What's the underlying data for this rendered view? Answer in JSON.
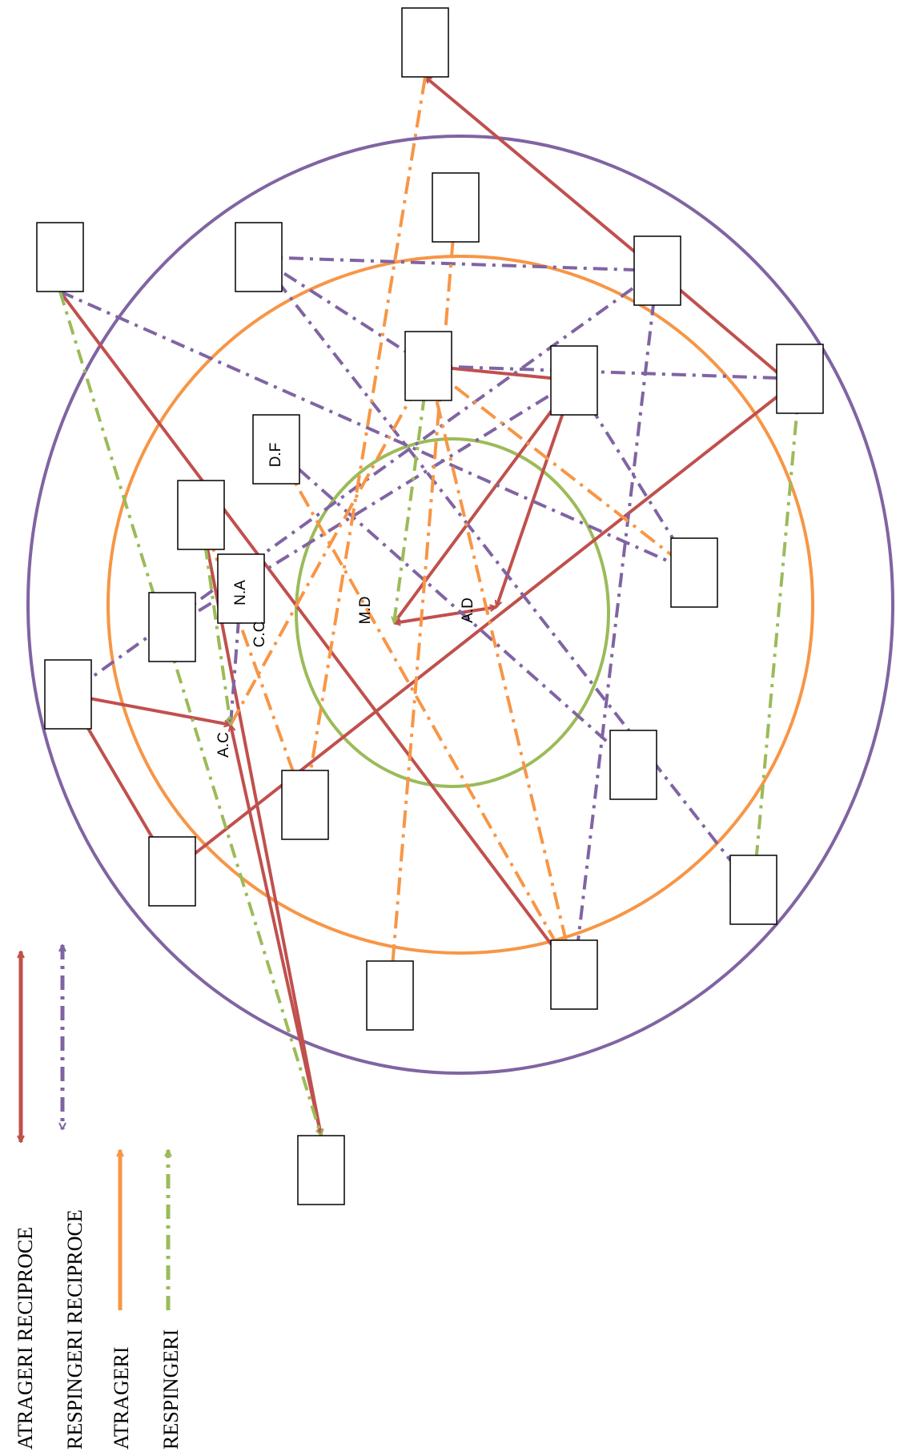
{
  "colors": {
    "reciprocal_attraction": "#c0504d",
    "reciprocal_rejection": "#8064a2",
    "attraction": "#f79646",
    "rejection": "#9bbb59",
    "outer_ring": "#8064a2",
    "middle_ring": "#f79646",
    "inner_ring": "#9bbb59"
  },
  "legend": {
    "reciprocal_attraction": "ATRAGERI RECIPROCE",
    "reciprocal_rejection": "RESPINGERI RECIPROCE",
    "attraction": "ATRAGERI",
    "rejection": "RESPINGERI"
  },
  "node_labels": {
    "df": "D.F",
    "na": "N.A",
    "cc": "C.C",
    "ac": "A.C",
    "md": "M.D",
    "ad": "A.D"
  },
  "diagram": {
    "nodes": [
      "t1",
      "t2",
      "t3",
      "t4",
      "t5",
      "t6",
      "t7",
      "t8",
      "t9",
      "t10",
      "t11",
      "t12",
      "t13",
      "t14",
      "t15",
      "t16",
      "t17",
      "t18",
      "t19",
      "t20",
      "t21",
      "df",
      "na",
      "ac",
      "md",
      "ad"
    ],
    "edges": [
      {
        "from": "md",
        "to": "ad",
        "kind": "reciprocal_attraction"
      },
      {
        "from": "md",
        "to": "t6",
        "kind": "reciprocal_attraction"
      },
      {
        "from": "ad",
        "to": "t6",
        "kind": "reciprocal_attraction"
      },
      {
        "from": "ac",
        "to": "t11",
        "kind": "reciprocal_attraction"
      },
      {
        "from": "ac",
        "to": "t19",
        "kind": "reciprocal_attraction"
      },
      {
        "from": "t11",
        "to": "t15",
        "kind": "reciprocal_attraction"
      },
      {
        "from": "t9",
        "to": "t19",
        "kind": "reciprocal_attraction"
      },
      {
        "from": "t1",
        "to": "t7",
        "kind": "reciprocal_attraction"
      },
      {
        "from": "t6",
        "to": "t5",
        "kind": "reciprocal_attraction"
      },
      {
        "from": "t8",
        "to": "t15",
        "kind": "reciprocal_attraction"
      },
      {
        "from": "t3",
        "to": "t18",
        "kind": "reciprocal_attraction"
      },
      {
        "from": "t7",
        "to": "t21",
        "kind": "reciprocal_attraction"
      },
      {
        "from": "t4",
        "to": "t7",
        "kind": "reciprocal_rejection"
      },
      {
        "from": "t4",
        "to": "t16",
        "kind": "reciprocal_rejection"
      },
      {
        "from": "t4",
        "to": "t5",
        "kind": "reciprocal_rejection"
      },
      {
        "from": "t5",
        "to": "t8",
        "kind": "reciprocal_rejection"
      },
      {
        "from": "t3",
        "to": "t12",
        "kind": "reciprocal_rejection"
      },
      {
        "from": "t6",
        "to": "t12",
        "kind": "reciprocal_rejection"
      },
      {
        "from": "t6",
        "to": "t10",
        "kind": "reciprocal_rejection"
      },
      {
        "from": "t7",
        "to": "t18",
        "kind": "reciprocal_rejection"
      },
      {
        "from": "t7",
        "to": "t11",
        "kind": "reciprocal_rejection"
      },
      {
        "from": "df",
        "to": "t13",
        "kind": "reciprocal_rejection"
      },
      {
        "from": "na",
        "to": "ac",
        "kind": "reciprocal_rejection"
      },
      {
        "from": "t1",
        "to": "t14",
        "kind": "attraction"
      },
      {
        "from": "t18",
        "to": "df",
        "kind": "attraction"
      },
      {
        "from": "t18",
        "to": "t5",
        "kind": "attraction"
      },
      {
        "from": "ac",
        "to": "t5",
        "kind": "attraction"
      },
      {
        "from": "t5",
        "to": "t12",
        "kind": "attraction"
      },
      {
        "from": "t17",
        "to": "t2",
        "kind": "attraction"
      },
      {
        "from": "t16",
        "to": "t20",
        "kind": "attraction"
      },
      {
        "from": "t14",
        "to": "t9",
        "kind": "attraction"
      },
      {
        "from": "t9",
        "to": "ac",
        "kind": "rejection"
      },
      {
        "from": "t3",
        "to": "t19",
        "kind": "rejection"
      },
      {
        "from": "t5",
        "to": "md",
        "kind": "rejection"
      },
      {
        "from": "t16",
        "to": "t8",
        "kind": "rejection"
      }
    ]
  }
}
